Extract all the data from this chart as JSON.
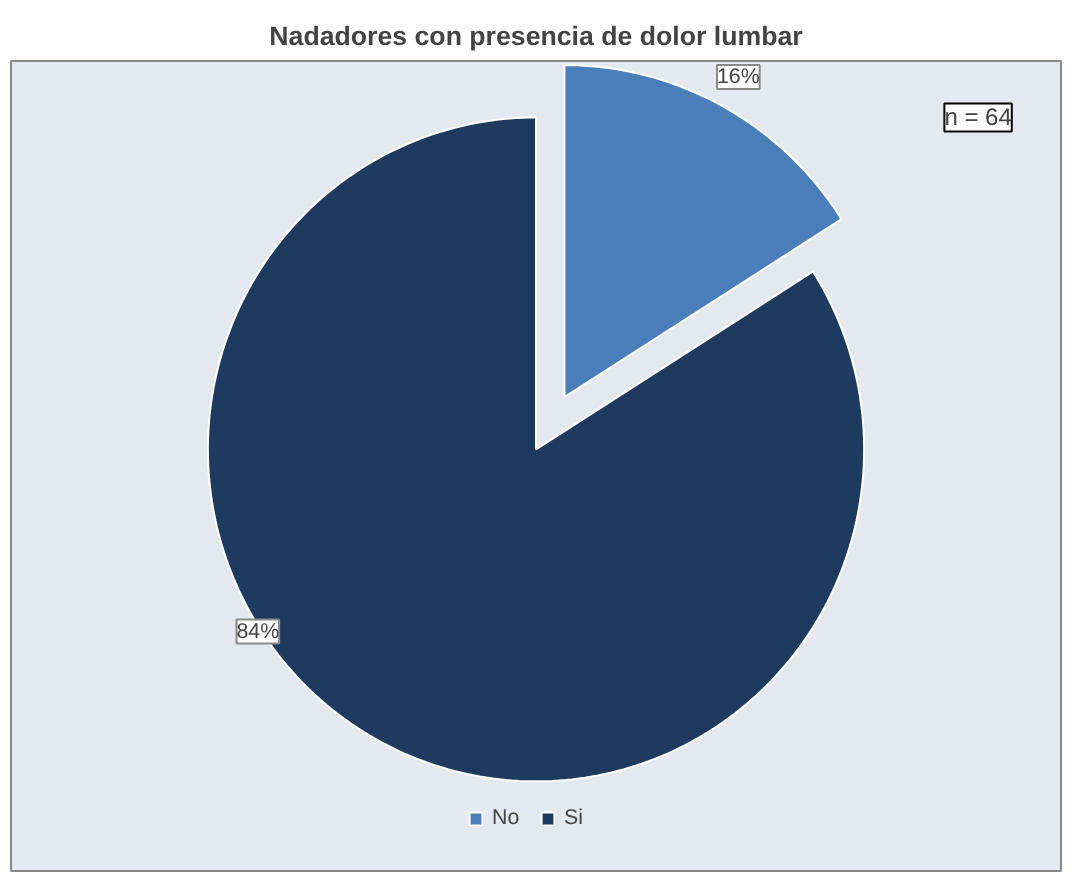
{
  "chart_data": {
    "type": "pie",
    "title": "Nadadores con presencia de dolor lumbar",
    "categories": [
      "No",
      "Si"
    ],
    "values": [
      16,
      84
    ],
    "colors": [
      "#4a7ebb",
      "#1f3a5f"
    ],
    "value_labels": [
      "16%",
      "84%"
    ],
    "annotations": [
      "n = 64"
    ],
    "legend": "bottom"
  }
}
